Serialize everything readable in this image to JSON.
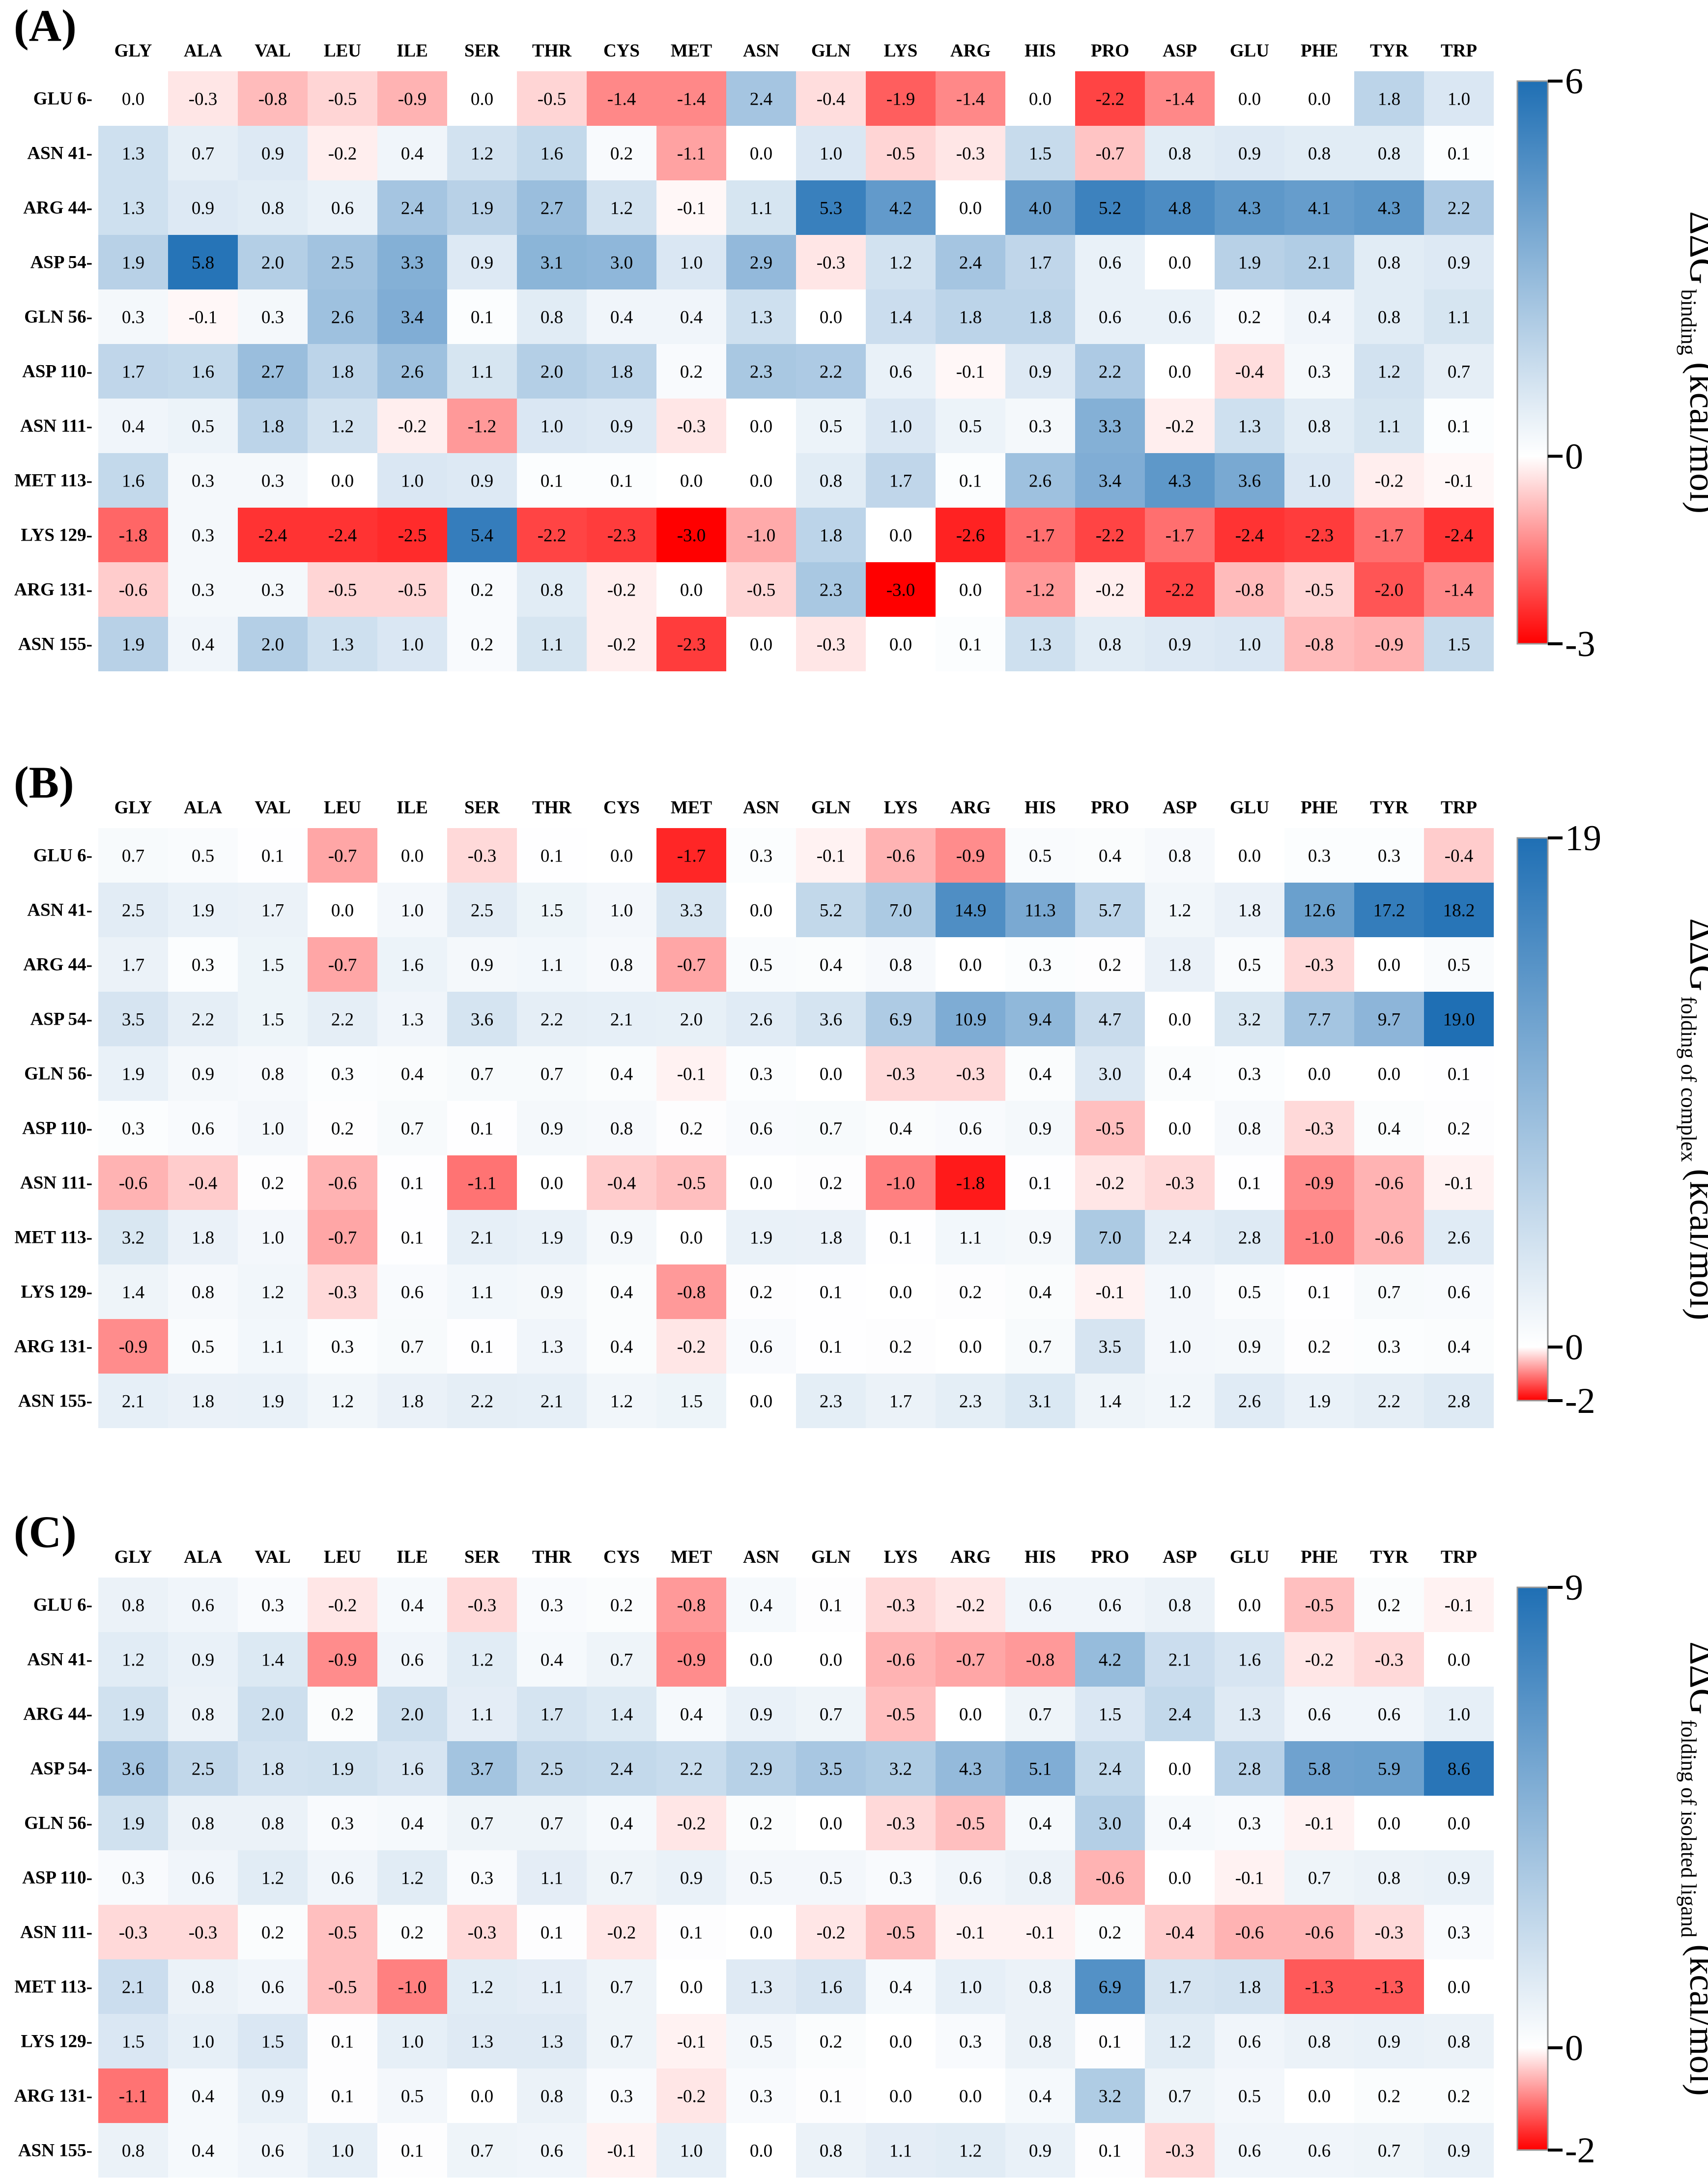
{
  "chart_data": [
    {
      "type": "heatmap",
      "panel_label": "(A)",
      "columns": [
        "GLY",
        "ALA",
        "VAL",
        "LEU",
        "ILE",
        "SER",
        "THR",
        "CYS",
        "MET",
        "ASN",
        "GLN",
        "LYS",
        "ARG",
        "HIS",
        "PRO",
        "ASP",
        "GLU",
        "PHE",
        "TYR",
        "TRP"
      ],
      "rows": [
        "GLU 6-",
        "ASN 41-",
        "ARG 44-",
        "ASP 54-",
        "GLN 56-",
        "ASP 110-",
        "ASN 111-",
        "MET 113-",
        "LYS 129-",
        "ARG 131-",
        "ASN 155-"
      ],
      "values": [
        [
          "0.0",
          "-0.3",
          "-0.8",
          "-0.5",
          "-0.9",
          "0.0",
          "-0.5",
          "-1.4",
          "-1.4",
          "2.4",
          "-0.4",
          "-1.9",
          "-1.4",
          "0.0",
          "-2.2",
          "-1.4",
          "0.0",
          "0.0",
          "1.8",
          "1.0"
        ],
        [
          "1.3",
          "0.7",
          "0.9",
          "-0.2",
          "0.4",
          "1.2",
          "1.6",
          "0.2",
          "-1.1",
          "0.0",
          "1.0",
          "-0.5",
          "-0.3",
          "1.5",
          "-0.7",
          "0.8",
          "0.9",
          "0.8",
          "0.8",
          "0.1"
        ],
        [
          "1.3",
          "0.9",
          "0.8",
          "0.6",
          "2.4",
          "1.9",
          "2.7",
          "1.2",
          "-0.1",
          "1.1",
          "5.3",
          "4.2",
          "0.0",
          "4.0",
          "5.2",
          "4.8",
          "4.3",
          "4.1",
          "4.3",
          "2.2"
        ],
        [
          "1.9",
          "5.8",
          "2.0",
          "2.5",
          "3.3",
          "0.9",
          "3.1",
          "3.0",
          "1.0",
          "2.9",
          "-0.3",
          "1.2",
          "2.4",
          "1.7",
          "0.6",
          "0.0",
          "1.9",
          "2.1",
          "0.8",
          "0.9"
        ],
        [
          "0.3",
          "-0.1",
          "0.3",
          "2.6",
          "3.4",
          "0.1",
          "0.8",
          "0.4",
          "0.4",
          "1.3",
          "0.0",
          "1.4",
          "1.8",
          "1.8",
          "0.6",
          "0.6",
          "0.2",
          "0.4",
          "0.8",
          "1.1"
        ],
        [
          "1.7",
          "1.6",
          "2.7",
          "1.8",
          "2.6",
          "1.1",
          "2.0",
          "1.8",
          "0.2",
          "2.3",
          "2.2",
          "0.6",
          "-0.1",
          "0.9",
          "2.2",
          "0.0",
          "-0.4",
          "0.3",
          "1.2",
          "0.7"
        ],
        [
          "0.4",
          "0.5",
          "1.8",
          "1.2",
          "-0.2",
          "-1.2",
          "1.0",
          "0.9",
          "-0.3",
          "0.0",
          "0.5",
          "1.0",
          "0.5",
          "0.3",
          "3.3",
          "-0.2",
          "1.3",
          "0.8",
          "1.1",
          "0.1"
        ],
        [
          "1.6",
          "0.3",
          "0.3",
          "0.0",
          "1.0",
          "0.9",
          "0.1",
          "0.1",
          "0.0",
          "0.0",
          "0.8",
          "1.7",
          "0.1",
          "2.6",
          "3.4",
          "4.3",
          "3.6",
          "1.0",
          "-0.2",
          "-0.1"
        ],
        [
          "-1.8",
          "0.3",
          "-2.4",
          "-2.4",
          "-2.5",
          "5.4",
          "-2.2",
          "-2.3",
          "-3.0",
          "-1.0",
          "1.8",
          "0.0",
          "-2.6",
          "-1.7",
          "-2.2",
          "-1.7",
          "-2.4",
          "-2.3",
          "-1.7",
          "-2.4"
        ],
        [
          "-0.6",
          "0.3",
          "0.3",
          "-0.5",
          "-0.5",
          "0.2",
          "0.8",
          "-0.2",
          "0.0",
          "-0.5",
          "2.3",
          "-3.0",
          "0.0",
          "-1.2",
          "-0.2",
          "-2.2",
          "-0.8",
          "-0.5",
          "-2.0",
          "-1.4"
        ],
        [
          "1.9",
          "0.4",
          "2.0",
          "1.3",
          "1.0",
          "0.2",
          "1.1",
          "-0.2",
          "-2.3",
          "0.0",
          "-0.3",
          "0.0",
          "0.1",
          "1.3",
          "0.8",
          "0.9",
          "1.0",
          "-0.8",
          "-0.9",
          "1.5"
        ]
      ],
      "colorbar": {
        "min": -3,
        "max": 6,
        "tick_labels": [
          "6",
          "0",
          "-3"
        ],
        "tick_values": [
          6,
          0,
          -3
        ]
      },
      "colorbar_label": {
        "prefix": "ΔΔG",
        "subscript": "binding",
        "unit": "(kcal/mol)"
      },
      "color_low": "#ff0000",
      "color_mid": "#ffffff",
      "color_high": "#1f6fb4"
    },
    {
      "type": "heatmap",
      "panel_label": "(B)",
      "columns": [
        "GLY",
        "ALA",
        "VAL",
        "LEU",
        "ILE",
        "SER",
        "THR",
        "CYS",
        "MET",
        "ASN",
        "GLN",
        "LYS",
        "ARG",
        "HIS",
        "PRO",
        "ASP",
        "GLU",
        "PHE",
        "TYR",
        "TRP"
      ],
      "rows": [
        "GLU 6-",
        "ASN 41-",
        "ARG 44-",
        "ASP 54-",
        "GLN 56-",
        "ASP 110-",
        "ASN 111-",
        "MET 113-",
        "LYS 129-",
        "ARG 131-",
        "ASN 155-"
      ],
      "values": [
        [
          "0.7",
          "0.5",
          "0.1",
          "-0.7",
          "0.0",
          "-0.3",
          "0.1",
          "0.0",
          "-1.7",
          "0.3",
          "-0.1",
          "-0.6",
          "-0.9",
          "0.5",
          "0.4",
          "0.8",
          "0.0",
          "0.3",
          "0.3",
          "-0.4"
        ],
        [
          "2.5",
          "1.9",
          "1.7",
          "0.0",
          "1.0",
          "2.5",
          "1.5",
          "1.0",
          "3.3",
          "0.0",
          "5.2",
          "7.0",
          "14.9",
          "11.3",
          "5.7",
          "1.2",
          "1.8",
          "12.6",
          "17.2",
          "18.2"
        ],
        [
          "1.7",
          "0.3",
          "1.5",
          "-0.7",
          "1.6",
          "0.9",
          "1.1",
          "0.8",
          "-0.7",
          "0.5",
          "0.4",
          "0.8",
          "0.0",
          "0.3",
          "0.2",
          "1.8",
          "0.5",
          "-0.3",
          "0.0",
          "0.5"
        ],
        [
          "3.5",
          "2.2",
          "1.5",
          "2.2",
          "1.3",
          "3.6",
          "2.2",
          "2.1",
          "2.0",
          "2.6",
          "3.6",
          "6.9",
          "10.9",
          "9.4",
          "4.7",
          "0.0",
          "3.2",
          "7.7",
          "9.7",
          "19.0"
        ],
        [
          "1.9",
          "0.9",
          "0.8",
          "0.3",
          "0.4",
          "0.7",
          "0.7",
          "0.4",
          "-0.1",
          "0.3",
          "0.0",
          "-0.3",
          "-0.3",
          "0.4",
          "3.0",
          "0.4",
          "0.3",
          "0.0",
          "0.0",
          "0.1"
        ],
        [
          "0.3",
          "0.6",
          "1.0",
          "0.2",
          "0.7",
          "0.1",
          "0.9",
          "0.8",
          "0.2",
          "0.6",
          "0.7",
          "0.4",
          "0.6",
          "0.9",
          "-0.5",
          "0.0",
          "0.8",
          "-0.3",
          "0.4",
          "0.2"
        ],
        [
          "-0.6",
          "-0.4",
          "0.2",
          "-0.6",
          "0.1",
          "-1.1",
          "0.0",
          "-0.4",
          "-0.5",
          "0.0",
          "0.2",
          "-1.0",
          "-1.8",
          "0.1",
          "-0.2",
          "-0.3",
          "0.1",
          "-0.9",
          "-0.6",
          "-0.1"
        ],
        [
          "3.2",
          "1.8",
          "1.0",
          "-0.7",
          "0.1",
          "2.1",
          "1.9",
          "0.9",
          "0.0",
          "1.9",
          "1.8",
          "0.1",
          "1.1",
          "0.9",
          "7.0",
          "2.4",
          "2.8",
          "-1.0",
          "-0.6",
          "2.6"
        ],
        [
          "1.4",
          "0.8",
          "1.2",
          "-0.3",
          "0.6",
          "1.1",
          "0.9",
          "0.4",
          "-0.8",
          "0.2",
          "0.1",
          "0.0",
          "0.2",
          "0.4",
          "-0.1",
          "1.0",
          "0.5",
          "0.1",
          "0.7",
          "0.6"
        ],
        [
          "-0.9",
          "0.5",
          "1.1",
          "0.3",
          "0.7",
          "0.1",
          "1.3",
          "0.4",
          "-0.2",
          "0.6",
          "0.1",
          "0.2",
          "0.0",
          "0.7",
          "3.5",
          "1.0",
          "0.9",
          "0.2",
          "0.3",
          "0.4"
        ],
        [
          "2.1",
          "1.8",
          "1.9",
          "1.2",
          "1.8",
          "2.2",
          "2.1",
          "1.2",
          "1.5",
          "0.0",
          "2.3",
          "1.7",
          "2.3",
          "3.1",
          "1.4",
          "1.2",
          "2.6",
          "1.9",
          "2.2",
          "2.8"
        ]
      ],
      "colorbar": {
        "min": -2,
        "max": 19,
        "tick_labels": [
          "19",
          "0",
          "-2"
        ],
        "tick_values": [
          19,
          0,
          -2
        ]
      },
      "colorbar_label": {
        "prefix": "ΔΔG",
        "subscript": "folding of complex",
        "unit": "(kcal/mol)"
      },
      "color_low": "#ff0000",
      "color_mid": "#ffffff",
      "color_high": "#1f6fb4"
    },
    {
      "type": "heatmap",
      "panel_label": "(C)",
      "columns": [
        "GLY",
        "ALA",
        "VAL",
        "LEU",
        "ILE",
        "SER",
        "THR",
        "CYS",
        "MET",
        "ASN",
        "GLN",
        "LYS",
        "ARG",
        "HIS",
        "PRO",
        "ASP",
        "GLU",
        "PHE",
        "TYR",
        "TRP"
      ],
      "rows": [
        "GLU 6-",
        "ASN 41-",
        "ARG 44-",
        "ASP 54-",
        "GLN 56-",
        "ASP 110-",
        "ASN 111-",
        "MET 113-",
        "LYS 129-",
        "ARG 131-",
        "ASN 155-"
      ],
      "values": [
        [
          "0.8",
          "0.6",
          "0.3",
          "-0.2",
          "0.4",
          "-0.3",
          "0.3",
          "0.2",
          "-0.8",
          "0.4",
          "0.1",
          "-0.3",
          "-0.2",
          "0.6",
          "0.6",
          "0.8",
          "0.0",
          "-0.5",
          "0.2",
          "-0.1"
        ],
        [
          "1.2",
          "0.9",
          "1.4",
          "-0.9",
          "0.6",
          "1.2",
          "0.4",
          "0.7",
          "-0.9",
          "0.0",
          "0.0",
          "-0.6",
          "-0.7",
          "-0.8",
          "4.2",
          "2.1",
          "1.6",
          "-0.2",
          "-0.3",
          "0.0"
        ],
        [
          "1.9",
          "0.8",
          "2.0",
          "0.2",
          "2.0",
          "1.1",
          "1.7",
          "1.4",
          "0.4",
          "0.9",
          "0.7",
          "-0.5",
          "0.0",
          "0.7",
          "1.5",
          "2.4",
          "1.3",
          "0.6",
          "0.6",
          "1.0"
        ],
        [
          "3.6",
          "2.5",
          "1.8",
          "1.9",
          "1.6",
          "3.7",
          "2.5",
          "2.4",
          "2.2",
          "2.9",
          "3.5",
          "3.2",
          "4.3",
          "5.1",
          "2.4",
          "0.0",
          "2.8",
          "5.8",
          "5.9",
          "8.6"
        ],
        [
          "1.9",
          "0.8",
          "0.8",
          "0.3",
          "0.4",
          "0.7",
          "0.7",
          "0.4",
          "-0.2",
          "0.2",
          "0.0",
          "-0.3",
          "-0.5",
          "0.4",
          "3.0",
          "0.4",
          "0.3",
          "-0.1",
          "0.0",
          "0.0"
        ],
        [
          "0.3",
          "0.6",
          "1.2",
          "0.6",
          "1.2",
          "0.3",
          "1.1",
          "0.7",
          "0.9",
          "0.5",
          "0.5",
          "0.3",
          "0.6",
          "0.8",
          "-0.6",
          "0.0",
          "-0.1",
          "0.7",
          "0.8",
          "0.9"
        ],
        [
          "-0.3",
          "-0.3",
          "0.2",
          "-0.5",
          "0.2",
          "-0.3",
          "0.1",
          "-0.2",
          "0.1",
          "0.0",
          "-0.2",
          "-0.5",
          "-0.1",
          "-0.1",
          "0.2",
          "-0.4",
          "-0.6",
          "-0.6",
          "-0.3",
          "0.3"
        ],
        [
          "2.1",
          "0.8",
          "0.6",
          "-0.5",
          "-1.0",
          "1.2",
          "1.1",
          "0.7",
          "0.0",
          "1.3",
          "1.6",
          "0.4",
          "1.0",
          "0.8",
          "6.9",
          "1.7",
          "1.8",
          "-1.3",
          "-1.3",
          "0.0"
        ],
        [
          "1.5",
          "1.0",
          "1.5",
          "0.1",
          "1.0",
          "1.3",
          "1.3",
          "0.7",
          "-0.1",
          "0.5",
          "0.2",
          "0.0",
          "0.3",
          "0.8",
          "0.1",
          "1.2",
          "0.6",
          "0.8",
          "0.9",
          "0.8"
        ],
        [
          "-1.1",
          "0.4",
          "0.9",
          "0.1",
          "0.5",
          "0.0",
          "0.8",
          "0.3",
          "-0.2",
          "0.3",
          "0.1",
          "0.0",
          "0.0",
          "0.4",
          "3.2",
          "0.7",
          "0.5",
          "0.0",
          "0.2",
          "0.2"
        ],
        [
          "0.8",
          "0.4",
          "0.6",
          "1.0",
          "0.1",
          "0.7",
          "0.6",
          "-0.1",
          "1.0",
          "0.0",
          "0.8",
          "1.1",
          "1.2",
          "0.9",
          "0.1",
          "-0.3",
          "0.6",
          "0.6",
          "0.7",
          "0.9"
        ]
      ],
      "colorbar": {
        "min": -2,
        "max": 9,
        "tick_labels": [
          "9",
          "0",
          "-2"
        ],
        "tick_values": [
          9,
          0,
          -2
        ]
      },
      "colorbar_label": {
        "prefix": "ΔΔG",
        "subscript": "folding of isolated ligand",
        "unit": "(kcal/mol)"
      },
      "color_low": "#ff0000",
      "color_mid": "#ffffff",
      "color_high": "#1f6fb4"
    }
  ]
}
